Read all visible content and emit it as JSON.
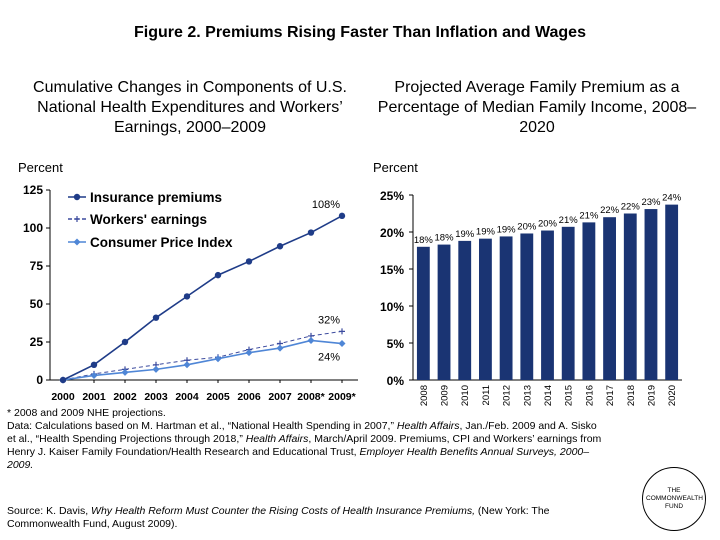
{
  "figure_title": "Figure 2. Premiums Rising Faster Than Inflation and Wages",
  "left_subtitle": "Cumulative Changes in Components of U.S. National Health Expenditures and Workers’ Earnings, 2000–2009",
  "right_subtitle": "Projected Average Family Premium as a Percentage of Median Family Income, 2008–2020",
  "notes": {
    "line1": "* 2008 and 2009 NHE projections.",
    "line2_pre": "Data: Calculations based on M. Hartman et al., “National Health Spending in 2007,” ",
    "line2_journal": "Health Affairs",
    "line2_mid": ", Jan./Feb. 2009 and A. Sisko et al., “Health Spending Projections through 2018,” ",
    "line2_journal2": "Health Affairs",
    "line2_post": ", March/April 2009. Premiums, CPI and Workers’ earnings from Henry J. Kaiser Family Foundation/Health Research and Educational Trust, ",
    "line2_survey": "Employer Health Benefits Annual Surveys, 2000–2009."
  },
  "source": {
    "pre": "Source: K. Davis, ",
    "title": "Why Health Reform Must Counter the Rising Costs of Health Insurance Premiums,",
    "post": " (New York: The Commonwealth Fund, August 2009)."
  },
  "logo_text": "THE COMMONWEALTH FUND",
  "colors": {
    "premiums": "#1f3c88",
    "wages": "#3b4a9e",
    "cpi": "#4f86d6",
    "bars": "#1a3473"
  },
  "chart_data": [
    {
      "type": "line",
      "title": "Cumulative Changes in Components of U.S. National Health Expenditures and Workers’ Earnings, 2000–2009",
      "ylabel": "Percent",
      "ylim": [
        0,
        125
      ],
      "yticks": [
        0,
        25,
        50,
        75,
        100,
        125
      ],
      "x": [
        "2000",
        "2001",
        "2002",
        "2003",
        "2004",
        "2005",
        "2006",
        "2007",
        "2008*",
        "2009*"
      ],
      "legend_position": "top-left",
      "series": [
        {
          "name": "Insurance premiums",
          "values": [
            0,
            10,
            25,
            41,
            55,
            69,
            78,
            88,
            97,
            108
          ]
        },
        {
          "name": "Workers' earnings",
          "values": [
            0,
            4,
            7,
            10,
            13,
            15,
            20,
            24,
            29,
            32
          ]
        },
        {
          "name": "Consumer Price Index",
          "values": [
            0,
            3,
            5,
            7,
            10,
            14,
            18,
            21,
            26,
            24
          ]
        }
      ],
      "annotations": [
        "108%",
        "32%",
        "24%"
      ]
    },
    {
      "type": "bar",
      "title": "Projected Average Family Premium as a Percentage of Median Family Income, 2008–2020",
      "ylabel": "Percent",
      "ylim": [
        0,
        25
      ],
      "yticks": [
        "0%",
        "5%",
        "10%",
        "15%",
        "20%",
        "25%"
      ],
      "categories": [
        "2008",
        "2009",
        "2010",
        "2011",
        "2012",
        "2013",
        "2014",
        "2015",
        "2016",
        "2017",
        "2018",
        "2019",
        "2020"
      ],
      "values": [
        18,
        18.3,
        18.8,
        19.1,
        19.4,
        19.8,
        20.2,
        20.7,
        21.3,
        22,
        22.5,
        23.1,
        23.7
      ],
      "data_labels": [
        "18%",
        "18%",
        "19%",
        "19%",
        "19%",
        "20%",
        "20%",
        "21%",
        "21%",
        "22%",
        "22%",
        "23%",
        "24%"
      ]
    }
  ]
}
